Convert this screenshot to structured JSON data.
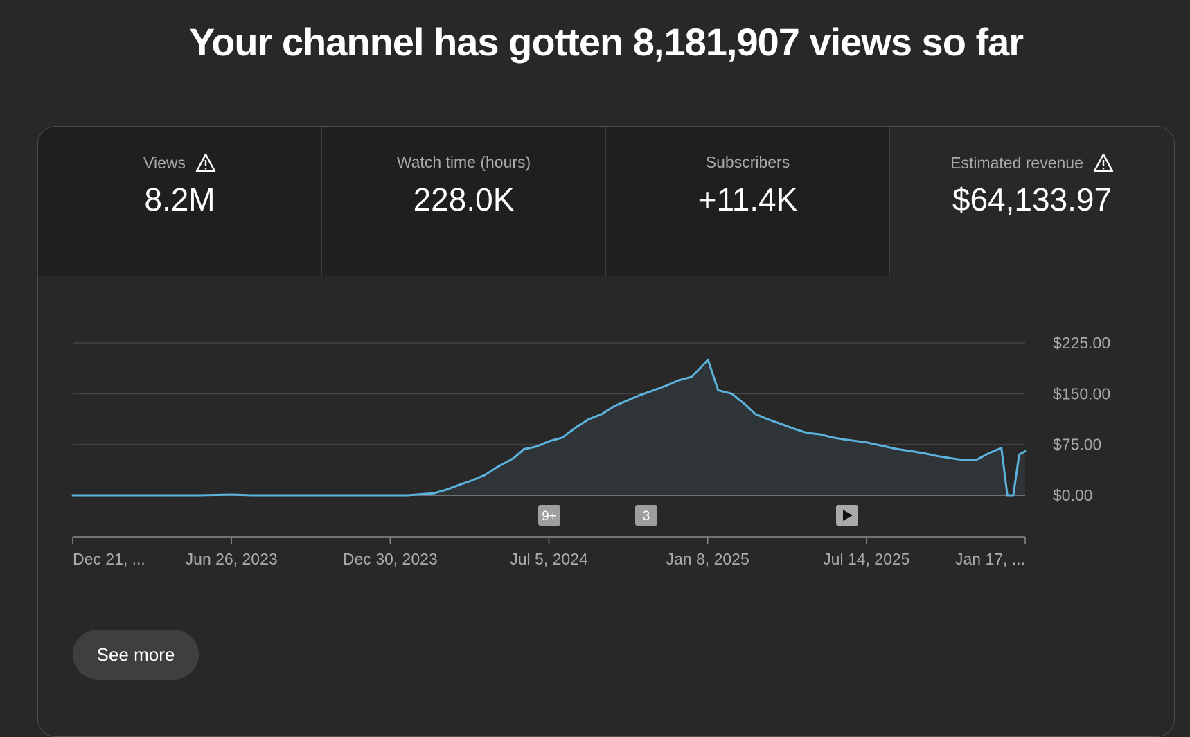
{
  "headline": "Your channel has gotten 8,181,907 views so far",
  "tabs": [
    {
      "label": "Views",
      "value": "8.2M",
      "warning": true,
      "selected": false
    },
    {
      "label": "Watch time (hours)",
      "value": "228.0K",
      "warning": false,
      "selected": false
    },
    {
      "label": "Subscribers",
      "value": "+11.4K",
      "warning": false,
      "selected": false
    },
    {
      "label": "Estimated revenue",
      "value": "$64,133.97",
      "warning": true,
      "selected": true
    }
  ],
  "see_more_label": "See more",
  "markers": [
    "9+",
    "3",
    "play-icon"
  ],
  "colors": {
    "line": "#5cb3de",
    "area": "#2f3438",
    "background": "#282828",
    "tab_bg": "#1f1f1f"
  },
  "chart_data": {
    "type": "area",
    "metric": "Estimated revenue",
    "x_tick_labels": [
      "Dec 21, ...",
      "Jun 26, 2023",
      "Dec 30, 2023",
      "Jul 5, 2024",
      "Jan 8, 2025",
      "Jul 14, 2025",
      "Jan 17, ..."
    ],
    "y_tick_labels": [
      "$0.00",
      "$75.00",
      "$150.00",
      "$225.00"
    ],
    "y_ticks": [
      0,
      75,
      150,
      225
    ],
    "ylim": [
      0,
      225
    ],
    "grid": true,
    "y_axis_side": "right",
    "x": [
      "2022-12-21",
      "2023-01-20",
      "2023-02-20",
      "2023-03-20",
      "2023-04-20",
      "2023-05-20",
      "2023-06-26",
      "2023-07-20",
      "2023-08-20",
      "2023-09-20",
      "2023-10-20",
      "2023-11-20",
      "2023-12-30",
      "2024-01-20",
      "2024-02-20",
      "2024-03-05",
      "2024-03-20",
      "2024-04-05",
      "2024-04-20",
      "2024-05-05",
      "2024-05-20",
      "2024-05-24",
      "2024-06-05",
      "2024-06-20",
      "2024-07-05",
      "2024-07-20",
      "2024-08-05",
      "2024-08-20",
      "2024-09-05",
      "2024-09-20",
      "2024-10-05",
      "2024-10-20",
      "2024-11-05",
      "2024-11-20",
      "2024-12-05",
      "2024-12-20",
      "2025-01-08",
      "2025-01-20",
      "2025-02-05",
      "2025-02-20",
      "2025-03-05",
      "2025-03-20",
      "2025-04-05",
      "2025-04-20",
      "2025-05-05",
      "2025-05-20",
      "2025-06-05",
      "2025-06-20",
      "2025-07-14",
      "2025-08-05",
      "2025-08-20",
      "2025-09-05",
      "2025-09-20",
      "2025-10-05",
      "2025-10-20",
      "2025-11-05",
      "2025-11-20",
      "2025-12-05",
      "2025-12-20",
      "2025-12-27",
      "2026-01-03",
      "2026-01-10",
      "2026-01-17"
    ],
    "values": [
      0,
      0,
      0,
      0,
      0,
      0,
      1,
      0,
      0,
      0,
      0,
      0,
      0,
      0,
      3,
      8,
      15,
      22,
      30,
      42,
      52,
      55,
      68,
      72,
      80,
      85,
      100,
      112,
      120,
      132,
      140,
      148,
      155,
      162,
      170,
      175,
      200,
      155,
      150,
      135,
      120,
      112,
      105,
      98,
      92,
      90,
      85,
      82,
      78,
      72,
      68,
      65,
      62,
      58,
      55,
      52,
      52,
      62,
      70,
      0,
      0,
      60,
      65
    ]
  }
}
